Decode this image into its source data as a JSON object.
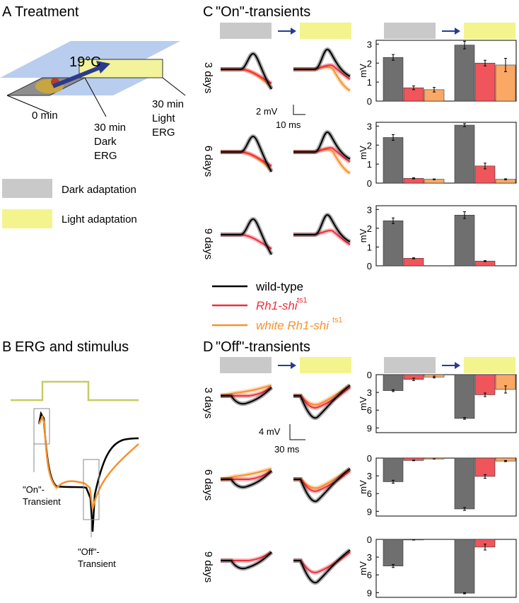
{
  "panel_a": {
    "letter": "A",
    "title": "Treatment",
    "temperature": "19°C",
    "timeline": [
      [
        "0 min"
      ],
      [
        "30 min",
        "Dark",
        "ERG"
      ],
      [
        "30 min",
        "Light",
        "ERG"
      ]
    ],
    "adaptation_legend": [
      "Dark adaptation",
      "Light adaptation"
    ]
  },
  "panel_b": {
    "letter": "B",
    "title": "ERG and stimulus",
    "on_label": [
      "\"On\"-",
      "Transient"
    ],
    "off_label": [
      "\"Off\"-",
      "Transient"
    ]
  },
  "panel_c": {
    "letter": "C",
    "title": "\"On\"-transients",
    "rows": [
      "3 days",
      "6 days",
      "9 days"
    ],
    "scale_y": "2 mV",
    "scale_x": "10 ms"
  },
  "panel_d": {
    "letter": "D",
    "title": "\"Off\"-transients",
    "rows": [
      "3 days",
      "6 days",
      "9 days"
    ],
    "scale_y": "4 mV",
    "scale_x": "30 ms"
  },
  "legend": [
    {
      "name": "wild-type",
      "color": "#000000"
    },
    {
      "name": "Rh1-shi",
      "superscript": "ts1",
      "color": "#ee2f3c"
    },
    {
      "name": "white Rh1-shi",
      "superscript": "ts1",
      "color": "#f7922c"
    }
  ],
  "chart_data": [
    {
      "type": "bar",
      "ylabel": "mV",
      "ylim": [
        0,
        3.2
      ],
      "yticks": [
        0,
        1,
        2,
        3
      ],
      "inverted": false,
      "series": [
        {
          "color": "#6f6f6f",
          "values": [
            2.3,
            2.95
          ],
          "errors": [
            0.15,
            0.2
          ]
        },
        {
          "color": "#f0555b",
          "values": [
            0.7,
            2.0
          ],
          "errors": [
            0.1,
            0.15
          ]
        },
        {
          "color": "#f9a865",
          "values": [
            0.6,
            1.9
          ],
          "errors": [
            0.12,
            0.35
          ]
        }
      ]
    },
    {
      "type": "bar",
      "ylabel": "mV",
      "ylim": [
        0,
        3.2
      ],
      "yticks": [
        0,
        1,
        2,
        3
      ],
      "inverted": false,
      "series": [
        {
          "color": "#6f6f6f",
          "values": [
            2.4,
            3.05
          ],
          "errors": [
            0.15,
            0.08
          ]
        },
        {
          "color": "#f0555b",
          "values": [
            0.25,
            0.9
          ],
          "errors": [
            0.03,
            0.15
          ]
        },
        {
          "color": "#f9a865",
          "values": [
            0.2,
            0.2
          ],
          "errors": [
            0.02,
            0.03
          ]
        }
      ]
    },
    {
      "type": "bar",
      "ylabel": "mV",
      "ylim": [
        0,
        3.2
      ],
      "yticks": [
        0,
        1,
        2,
        3
      ],
      "inverted": false,
      "series": [
        {
          "color": "#6f6f6f",
          "values": [
            2.4,
            2.7
          ],
          "errors": [
            0.15,
            0.18
          ]
        },
        {
          "color": "#f0555b",
          "values": [
            0.4,
            0.25
          ],
          "errors": [
            0.03,
            0.03
          ]
        }
      ]
    },
    {
      "type": "bar",
      "ylabel": "mV",
      "ylim": [
        0,
        9.8
      ],
      "yticks": [
        0,
        3,
        6,
        9
      ],
      "inverted": true,
      "series": [
        {
          "color": "#6f6f6f",
          "values": [
            2.7,
            7.4
          ],
          "errors": [
            0.15,
            0.15
          ]
        },
        {
          "color": "#f0555b",
          "values": [
            0.8,
            3.4
          ],
          "errors": [
            0.2,
            0.3
          ]
        },
        {
          "color": "#f9a865",
          "values": [
            0.4,
            2.5
          ],
          "errors": [
            0.15,
            0.6
          ]
        }
      ]
    },
    {
      "type": "bar",
      "ylabel": "mV",
      "ylim": [
        0,
        9.8
      ],
      "yticks": [
        0,
        3,
        6,
        9
      ],
      "inverted": true,
      "series": [
        {
          "color": "#6f6f6f",
          "values": [
            4.0,
            8.6
          ],
          "errors": [
            0.25,
            0.25
          ]
        },
        {
          "color": "#f0555b",
          "values": [
            0.4,
            3.1
          ],
          "errors": [
            0.05,
            0.3
          ]
        },
        {
          "color": "#f9a865",
          "values": [
            0.15,
            0.5
          ],
          "errors": [
            0.02,
            0.1
          ]
        }
      ]
    },
    {
      "type": "bar",
      "ylabel": "mV",
      "ylim": [
        0,
        9.8
      ],
      "yticks": [
        0,
        3,
        6,
        9
      ],
      "inverted": true,
      "series": [
        {
          "color": "#6f6f6f",
          "values": [
            4.5,
            9.1
          ],
          "errors": [
            0.25,
            0.1
          ]
        },
        {
          "color": "#f0555b",
          "values": [
            0.1,
            1.3
          ],
          "errors": [
            0.02,
            0.5
          ]
        }
      ]
    }
  ]
}
